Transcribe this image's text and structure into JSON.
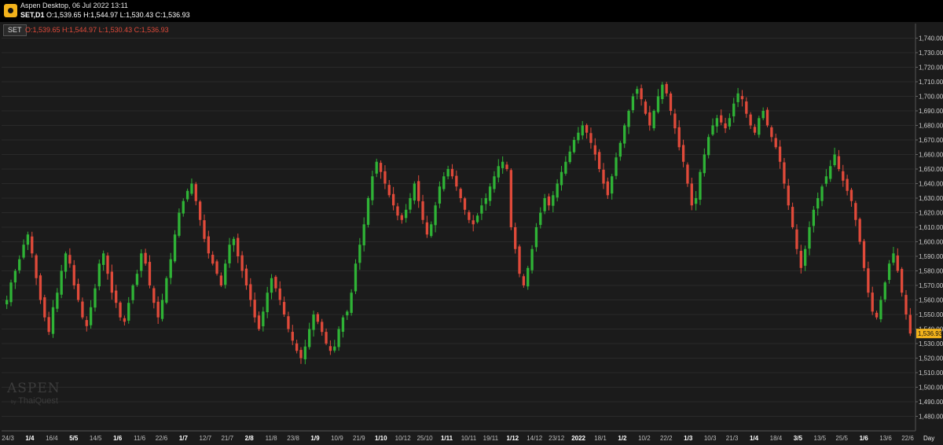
{
  "window": {
    "title": "Aspen Desktop, 06 Jul 2022 13:11",
    "symbol": "SET,D1",
    "ohlc": "O:1,539.65 H:1,544.97 L:1,530.43 C:1,536.93"
  },
  "legend": {
    "series": "SET",
    "ohlc": "O:1,539.65 H:1,544.97 L:1,530.43 C:1,536.93"
  },
  "watermark": {
    "brand": "ASPEN",
    "by": "by",
    "company": "ThaiQuest"
  },
  "colors": {
    "up": "#2fb336",
    "down": "#e04a3a",
    "wick_up": "#2fb336",
    "wick_down": "#e04a3a",
    "background": "#1b1b1b",
    "grid": "#2a2a2a",
    "price_tag": "#f2b21b"
  },
  "chart_data": {
    "type": "candlestick",
    "ylim": [
      1470,
      1750
    ],
    "y_ticks": [
      "1,480.00",
      "1,490.00",
      "1,500.00",
      "1,510.00",
      "1,520.00",
      "1,530.00",
      "1,540.00",
      "1,550.00",
      "1,560.00",
      "1,570.00",
      "1,580.00",
      "1,590.00",
      "1,600.00",
      "1,610.00",
      "1,620.00",
      "1,630.00",
      "1,640.00",
      "1,650.00",
      "1,660.00",
      "1,670.00",
      "1,680.00",
      "1,690.00",
      "1,700.00",
      "1,710.00",
      "1,720.00",
      "1,730.00",
      "1,740.00"
    ],
    "x_labels": [
      "24/3",
      "1/4",
      "16/4",
      "5/5",
      "14/5",
      "1/6",
      "11/6",
      "22/6",
      "1/7",
      "12/7",
      "21/7",
      "2/8",
      "11/8",
      "23/8",
      "1/9",
      "10/9",
      "21/9",
      "1/10",
      "10/12",
      "25/10",
      "1/11",
      "10/11",
      "19/11",
      "1/12",
      "14/12",
      "23/12",
      "2022",
      "18/1",
      "1/2",
      "10/2",
      "22/2",
      "1/3",
      "10/3",
      "21/3",
      "1/4",
      "18/4",
      "3/5",
      "13/5",
      "25/5",
      "1/6",
      "13/6",
      "22/6"
    ],
    "x_label_bold": [
      "1/4",
      "5/5",
      "1/6",
      "1/7",
      "2/8",
      "1/9",
      "1/10",
      "1/11",
      "1/12",
      "2022",
      "1/2",
      "1/3",
      "1/4",
      "3/5",
      "1/6"
    ],
    "x_axis_unit": "Day",
    "last_price": "1,536.93",
    "last_price_value": 1536.93,
    "closes": [
      1560,
      1572,
      1580,
      1588,
      1598,
      1605,
      1592,
      1575,
      1560,
      1548,
      1538,
      1555,
      1565,
      1580,
      1592,
      1585,
      1570,
      1560,
      1548,
      1542,
      1555,
      1568,
      1585,
      1592,
      1578,
      1565,
      1558,
      1548,
      1545,
      1558,
      1570,
      1578,
      1592,
      1585,
      1570,
      1558,
      1548,
      1560,
      1575,
      1588,
      1605,
      1620,
      1628,
      1635,
      1640,
      1628,
      1615,
      1602,
      1592,
      1585,
      1578,
      1570,
      1585,
      1598,
      1602,
      1590,
      1580,
      1570,
      1560,
      1548,
      1540,
      1552,
      1565,
      1575,
      1568,
      1560,
      1550,
      1540,
      1532,
      1525,
      1520,
      1528,
      1540,
      1550,
      1545,
      1538,
      1530,
      1525,
      1528,
      1540,
      1548,
      1552,
      1565,
      1585,
      1598,
      1612,
      1630,
      1645,
      1655,
      1648,
      1640,
      1632,
      1625,
      1618,
      1615,
      1622,
      1630,
      1640,
      1628,
      1615,
      1605,
      1612,
      1625,
      1638,
      1645,
      1650,
      1645,
      1638,
      1630,
      1622,
      1615,
      1612,
      1618,
      1625,
      1630,
      1638,
      1645,
      1652,
      1655,
      1650,
      1610,
      1595,
      1578,
      1570,
      1582,
      1595,
      1610,
      1620,
      1630,
      1625,
      1632,
      1640,
      1648,
      1655,
      1662,
      1670,
      1675,
      1680,
      1675,
      1668,
      1660,
      1650,
      1640,
      1632,
      1645,
      1658,
      1668,
      1680,
      1690,
      1700,
      1705,
      1698,
      1688,
      1680,
      1690,
      1700,
      1708,
      1702,
      1690,
      1678,
      1665,
      1655,
      1640,
      1625,
      1630,
      1648,
      1660,
      1672,
      1680,
      1685,
      1682,
      1678,
      1685,
      1695,
      1702,
      1698,
      1688,
      1680,
      1675,
      1685,
      1690,
      1680,
      1672,
      1665,
      1655,
      1640,
      1625,
      1610,
      1595,
      1582,
      1595,
      1610,
      1622,
      1630,
      1638,
      1645,
      1652,
      1660,
      1650,
      1642,
      1635,
      1628,
      1615,
      1600,
      1582,
      1565,
      1552,
      1548,
      1560,
      1572,
      1585,
      1592,
      1580,
      1565,
      1550,
      1536.93
    ]
  }
}
